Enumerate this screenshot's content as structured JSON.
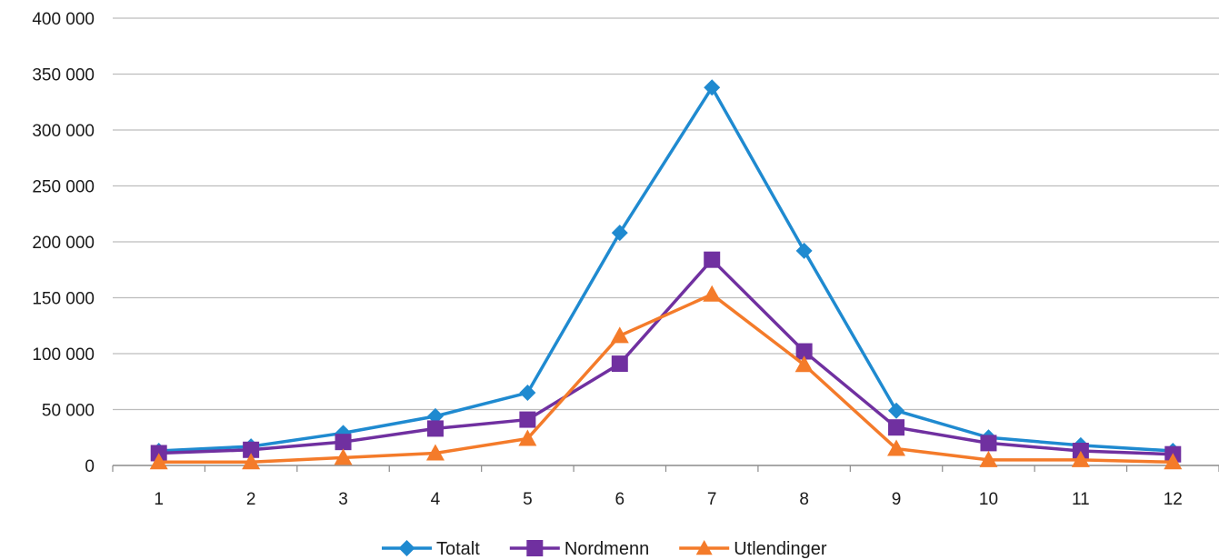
{
  "chart_data": {
    "type": "line",
    "title": "",
    "xlabel": "",
    "ylabel": "",
    "x": [
      1,
      2,
      3,
      4,
      5,
      6,
      7,
      8,
      9,
      10,
      11,
      12
    ],
    "ylim": [
      0,
      400000
    ],
    "yticks": [
      0,
      50000,
      100000,
      150000,
      200000,
      250000,
      300000,
      350000,
      400000
    ],
    "ytick_labels": [
      "0",
      "50 000",
      "100 000",
      "150 000",
      "200 000",
      "250 000",
      "300 000",
      "350 000",
      "400 000"
    ],
    "xtick_labels": [
      "1",
      "2",
      "3",
      "4",
      "5",
      "6",
      "7",
      "8",
      "9",
      "10",
      "11",
      "12"
    ],
    "grid": true,
    "legend_position": "bottom",
    "series": [
      {
        "name": "Totalt",
        "color": "#1f8ad0",
        "marker": "diamond",
        "values": [
          13000,
          17000,
          29000,
          44000,
          65000,
          208000,
          338000,
          192000,
          49000,
          25000,
          18000,
          13000
        ]
      },
      {
        "name": "Nordmenn",
        "color": "#7030a0",
        "marker": "square",
        "values": [
          11000,
          14000,
          21000,
          33000,
          41000,
          91000,
          184000,
          102000,
          34000,
          20000,
          13000,
          10000
        ]
      },
      {
        "name": "Utlendinger",
        "color": "#f47b2a",
        "marker": "triangle",
        "values": [
          3000,
          3000,
          7000,
          11000,
          24000,
          116000,
          153000,
          90000,
          15000,
          5000,
          5000,
          3000
        ]
      }
    ]
  }
}
